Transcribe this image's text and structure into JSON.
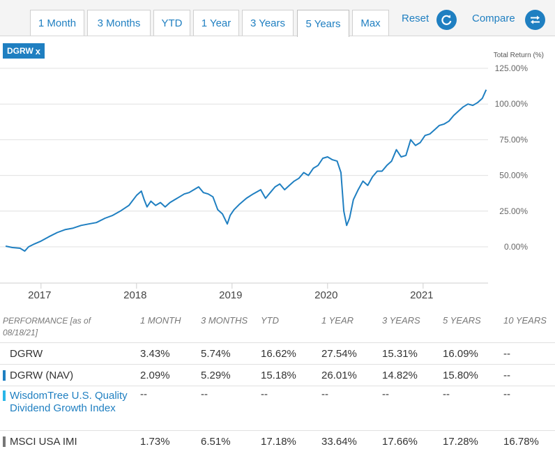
{
  "range_tabs": [
    {
      "label": "1 Month",
      "active": false
    },
    {
      "label": "3 Months",
      "active": false
    },
    {
      "label": "YTD",
      "active": false
    },
    {
      "label": "1 Year",
      "active": false
    },
    {
      "label": "3 Years",
      "active": false
    },
    {
      "label": "5 Years",
      "active": true
    },
    {
      "label": "Max",
      "active": false
    }
  ],
  "reset_label": "Reset",
  "compare_label": "Compare",
  "legend_chip": {
    "label": "DGRW",
    "close": "x"
  },
  "chart_data": {
    "type": "line",
    "ylabel": "Total Return (%)",
    "y_ticks": [
      "125.00%",
      "100.00%",
      "75.00%",
      "50.00%",
      "25.00%",
      "0.00%"
    ],
    "y_tick_values": [
      125,
      100,
      75,
      50,
      25,
      0
    ],
    "ylim": [
      -25,
      125
    ],
    "x_ticks": [
      "2017",
      "2018",
      "2019",
      "2020",
      "2021"
    ],
    "x_tick_values": [
      2017.0,
      2018.0,
      2019.0,
      2020.0,
      2021.0
    ],
    "xlim": [
      2016.6,
      2021.68
    ],
    "grid": true,
    "series": [
      {
        "name": "DGRW",
        "color": "#1f7fc1",
        "x": [
          2016.63,
          2016.7,
          2016.78,
          2016.83,
          2016.87,
          2016.93,
          2017.0,
          2017.08,
          2017.17,
          2017.25,
          2017.33,
          2017.42,
          2017.5,
          2017.58,
          2017.67,
          2017.75,
          2017.83,
          2017.92,
          2018.0,
          2018.05,
          2018.08,
          2018.11,
          2018.15,
          2018.2,
          2018.25,
          2018.3,
          2018.35,
          2018.4,
          2018.45,
          2018.5,
          2018.55,
          2018.6,
          2018.65,
          2018.7,
          2018.75,
          2018.8,
          2018.85,
          2018.9,
          2018.95,
          2018.98,
          2019.02,
          2019.08,
          2019.15,
          2019.22,
          2019.3,
          2019.35,
          2019.4,
          2019.45,
          2019.5,
          2019.55,
          2019.6,
          2019.65,
          2019.7,
          2019.75,
          2019.8,
          2019.85,
          2019.9,
          2019.95,
          2020.0,
          2020.05,
          2020.1,
          2020.14,
          2020.17,
          2020.2,
          2020.23,
          2020.27,
          2020.32,
          2020.37,
          2020.42,
          2020.47,
          2020.52,
          2020.57,
          2020.62,
          2020.67,
          2020.72,
          2020.77,
          2020.82,
          2020.87,
          2020.92,
          2020.97,
          2021.02,
          2021.07,
          2021.12,
          2021.17,
          2021.22,
          2021.27,
          2021.32,
          2021.37,
          2021.42,
          2021.47,
          2021.52,
          2021.57,
          2021.62,
          2021.66
        ],
        "values": [
          0.5,
          -0.5,
          -1,
          -3,
          0,
          2,
          4,
          7,
          10,
          12,
          13,
          15,
          16,
          17,
          20,
          22,
          25,
          29,
          36,
          39,
          33,
          28,
          32,
          29,
          31,
          28,
          31,
          33,
          35,
          37,
          38,
          40,
          42,
          38,
          37,
          35,
          26,
          23,
          16,
          22,
          26,
          30,
          34,
          37,
          40,
          34,
          38,
          42,
          44,
          40,
          43,
          46,
          48,
          52,
          50,
          55,
          57,
          62,
          63,
          61,
          60,
          52,
          25,
          15,
          20,
          33,
          40,
          46,
          43,
          49,
          53,
          53,
          57,
          60,
          68,
          63,
          64,
          75,
          71,
          73,
          78,
          79,
          82,
          85,
          86,
          88,
          92,
          95,
          98,
          100,
          99,
          101,
          104,
          110
        ]
      }
    ]
  },
  "performance": {
    "header_label": "PERFORMANCE [as of 08/18/21]",
    "columns": [
      "1 MONTH",
      "3 MONTHS",
      "YTD",
      "1 YEAR",
      "3 YEARS",
      "5 YEARS",
      "10 YEARS"
    ],
    "rows": [
      {
        "name": "DGRW",
        "marker": "",
        "link": false,
        "values": [
          "3.43%",
          "5.74%",
          "16.62%",
          "27.54%",
          "15.31%",
          "16.09%",
          "--"
        ]
      },
      {
        "name": "DGRW (NAV)",
        "marker": "#1f7fc1",
        "link": false,
        "values": [
          "2.09%",
          "5.29%",
          "15.18%",
          "26.01%",
          "14.82%",
          "15.80%",
          "--"
        ]
      },
      {
        "name": "WisdomTree U.S. Quality Dividend Growth Index",
        "marker": "#29b6e8",
        "link": true,
        "values": [
          "--",
          "--",
          "--",
          "--",
          "--",
          "--",
          "--"
        ]
      },
      {
        "name": "MSCI USA IMI",
        "marker": "#777777",
        "link": false,
        "values": [
          "1.73%",
          "6.51%",
          "17.18%",
          "33.64%",
          "17.66%",
          "17.28%",
          "16.78%"
        ]
      }
    ]
  }
}
